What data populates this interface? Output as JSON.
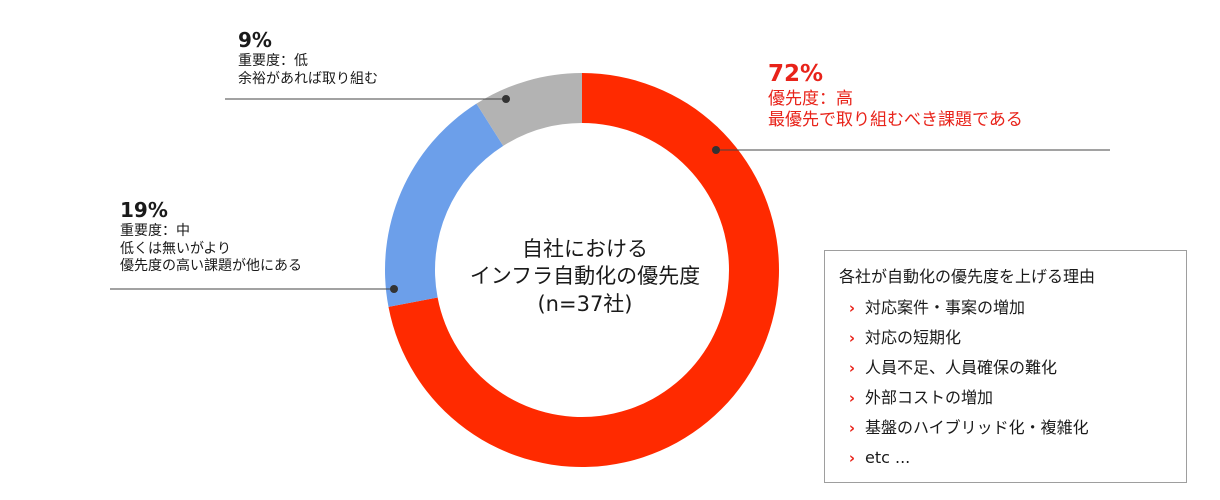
{
  "chart_data": {
    "type": "pie",
    "donut": true,
    "title": "自社における\nインフラ自動化の優先度\n(n=37社)",
    "slices": [
      {
        "value": 72,
        "label": "72%",
        "name": "優先度：高",
        "desc": "最優先で取り組むべき課題である",
        "color": "#ff2a00"
      },
      {
        "value": 19,
        "label": "19%",
        "name": "重要度：中",
        "desc": "低くは無いがより\n優先度の高い課題が他にある",
        "color": "#6c9fea"
      },
      {
        "value": 9,
        "label": "9%",
        "name": "重要度：低",
        "desc": "余裕があれば取り組む",
        "color": "#b3b3b3"
      }
    ],
    "colors": {
      "high_text": "#e8231a",
      "leader_line": "#444444",
      "dot": "#333333"
    }
  },
  "reasons": {
    "title": "各社が自動化の優先度を上げる理由",
    "bullet_icon": "chevron-right-icon",
    "items": [
      "対応案件・事案の増加",
      "対応の短期化",
      "人員不足、人員確保の難化",
      "外部コストの増加",
      "基盤のハイブリッド化・複雑化",
      "etc ..."
    ]
  }
}
